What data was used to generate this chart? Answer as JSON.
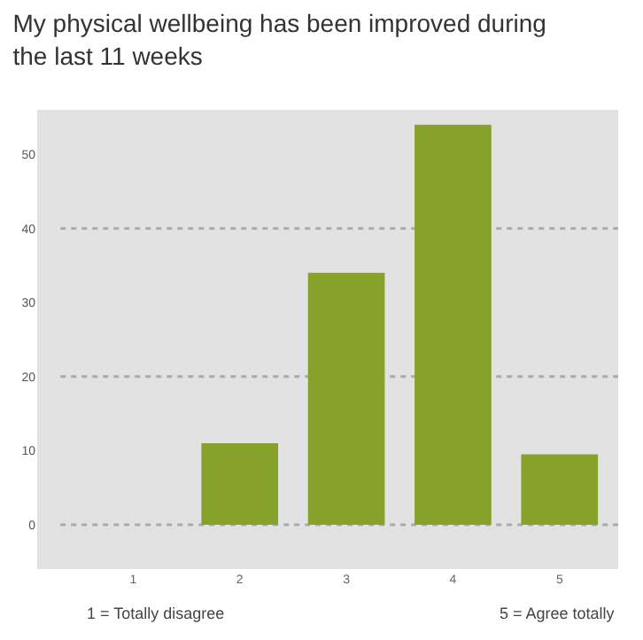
{
  "chart_data": {
    "type": "bar",
    "title": "My physical wellbeing has been improved during the last 11 weeks",
    "categories": [
      "1",
      "2",
      "3",
      "4",
      "5"
    ],
    "values": [
      0,
      11,
      34,
      54,
      9.5
    ],
    "color": "#86a22a",
    "ylim": [
      -6,
      56
    ],
    "yticks": [
      0,
      10,
      20,
      30,
      40,
      50
    ],
    "ref_lines": [
      {
        "axis": "y",
        "value": 0,
        "line_style": "dotted",
        "color": "#aaaaaa"
      },
      {
        "axis": "y",
        "value": 20,
        "line_style": "dotted",
        "color": "#aaaaaa"
      },
      {
        "axis": "y",
        "value": 40,
        "line_style": "dotted",
        "color": "#aaaaaa"
      }
    ],
    "annotations": [
      "1 = Totally disagree",
      "5 = Agree totally"
    ]
  }
}
